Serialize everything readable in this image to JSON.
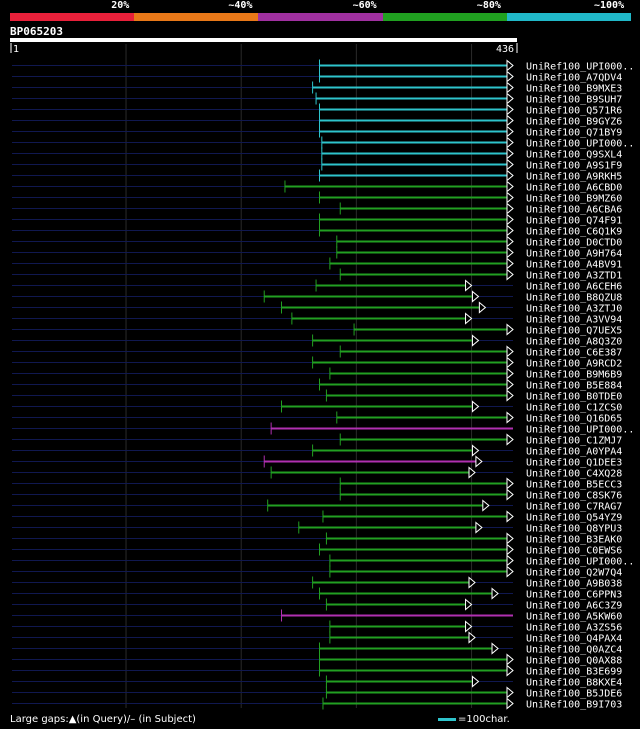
{
  "query": {
    "name": "BP065203",
    "start_label": "1",
    "end_label": "436",
    "length": 436
  },
  "identity_legend": [
    {
      "label": "20%",
      "color": "#e8203a"
    },
    {
      "label": "~40%",
      "color": "#e87818"
    },
    {
      "label": "~60%",
      "color": "#a030a0"
    },
    {
      "label": "~80%",
      "color": "#20a020"
    },
    {
      "label": "~100%",
      "color": "#20b8c8"
    }
  ],
  "footer": {
    "gaps_text": "Large gaps:▲(in Query)/– (in Subject)",
    "scale_text": "=100char."
  },
  "chart_data": {
    "type": "alignment",
    "x_range": [
      1,
      436
    ],
    "hits": [
      {
        "name": "UniRef100_UPI000..",
        "start": 268,
        "end": 436,
        "color": "cyan",
        "arrow": true
      },
      {
        "name": "UniRef100_A7QDV4",
        "start": 268,
        "end": 436,
        "color": "cyan",
        "arrow": true
      },
      {
        "name": "UniRef100_B9MXE3",
        "start": 262,
        "end": 436,
        "color": "cyan",
        "arrow": true
      },
      {
        "name": "UniRef100_B9SUH7",
        "start": 265,
        "end": 436,
        "color": "cyan",
        "arrow": true
      },
      {
        "name": "UniRef100_Q571R6",
        "start": 268,
        "end": 436,
        "color": "cyan",
        "arrow": true
      },
      {
        "name": "UniRef100_B9GYZ6",
        "start": 268,
        "end": 436,
        "color": "cyan",
        "arrow": true
      },
      {
        "name": "UniRef100_Q71BY9",
        "start": 268,
        "end": 436,
        "color": "cyan",
        "arrow": true
      },
      {
        "name": "UniRef100_UPI000..",
        "start": 270,
        "end": 436,
        "color": "cyan",
        "arrow": true
      },
      {
        "name": "UniRef100_Q9SXL4",
        "start": 270,
        "end": 436,
        "color": "cyan",
        "arrow": true
      },
      {
        "name": "UniRef100_A9S1F9",
        "start": 270,
        "end": 436,
        "color": "cyan",
        "arrow": true
      },
      {
        "name": "UniRef100_A9RKH5",
        "start": 268,
        "end": 436,
        "color": "cyan",
        "arrow": true
      },
      {
        "name": "UniRef100_A6CBD0",
        "start": 238,
        "end": 436,
        "color": "green",
        "arrow": true
      },
      {
        "name": "UniRef100_B9MZ60",
        "start": 268,
        "end": 436,
        "color": "green",
        "arrow": true
      },
      {
        "name": "UniRef100_A6CBA6",
        "start": 286,
        "end": 436,
        "color": "green",
        "arrow": true
      },
      {
        "name": "UniRef100_Q74F91",
        "start": 268,
        "end": 436,
        "color": "green",
        "arrow": true
      },
      {
        "name": "UniRef100_C6Q1K9",
        "start": 268,
        "end": 436,
        "color": "green",
        "arrow": true
      },
      {
        "name": "UniRef100_D0CTD0",
        "start": 283,
        "end": 436,
        "color": "green",
        "arrow": true
      },
      {
        "name": "UniRef100_A9H764",
        "start": 283,
        "end": 436,
        "color": "green",
        "arrow": true
      },
      {
        "name": "UniRef100_A4BV91",
        "start": 277,
        "end": 436,
        "color": "green",
        "arrow": true
      },
      {
        "name": "UniRef100_A3ZTD1",
        "start": 286,
        "end": 436,
        "color": "green",
        "arrow": true
      },
      {
        "name": "UniRef100_A6CEH6",
        "start": 265,
        "end": 400,
        "color": "green",
        "arrow": true
      },
      {
        "name": "UniRef100_B8QZU8",
        "start": 220,
        "end": 406,
        "color": "green",
        "arrow": true
      },
      {
        "name": "UniRef100_A3ZTJ0",
        "start": 235,
        "end": 412,
        "color": "green",
        "arrow": true
      },
      {
        "name": "UniRef100_A3VV94",
        "start": 244,
        "end": 400,
        "color": "green",
        "arrow": true
      },
      {
        "name": "UniRef100_Q7UEX5",
        "start": 298,
        "end": 436,
        "color": "green",
        "arrow": true
      },
      {
        "name": "UniRef100_A8Q3Z0",
        "start": 262,
        "end": 406,
        "color": "green",
        "arrow": true
      },
      {
        "name": "UniRef100_C6E387",
        "start": 286,
        "end": 436,
        "color": "green",
        "arrow": true
      },
      {
        "name": "UniRef100_A9RCD2",
        "start": 262,
        "end": 436,
        "color": "green",
        "arrow": true
      },
      {
        "name": "UniRef100_B9M6B9",
        "start": 277,
        "end": 436,
        "color": "green",
        "arrow": true
      },
      {
        "name": "UniRef100_B5E884",
        "start": 268,
        "end": 436,
        "color": "green",
        "arrow": true
      },
      {
        "name": "UniRef100_B0TDE0",
        "start": 274,
        "end": 436,
        "color": "green",
        "arrow": true
      },
      {
        "name": "UniRef100_C1ZCS0",
        "start": 235,
        "end": 406,
        "color": "green",
        "arrow": true
      },
      {
        "name": "UniRef100_Q16D65",
        "start": 283,
        "end": 436,
        "color": "green",
        "arrow": true
      },
      {
        "name": "UniRef100_UPI000..",
        "start": 226,
        "end": 436,
        "color": "magenta",
        "arrow": false
      },
      {
        "name": "UniRef100_C1ZMJ7",
        "start": 286,
        "end": 436,
        "color": "green",
        "arrow": true
      },
      {
        "name": "UniRef100_A0YPA4",
        "start": 262,
        "end": 406,
        "color": "green",
        "arrow": true
      },
      {
        "name": "UniRef100_Q1DEE3",
        "start": 220,
        "end": 409,
        "color": "magenta",
        "arrow": true
      },
      {
        "name": "UniRef100_C4XQ28",
        "start": 226,
        "end": 403,
        "color": "green",
        "arrow": true
      },
      {
        "name": "UniRef100_B5ECC3",
        "start": 286,
        "end": 436,
        "color": "green",
        "arrow": true
      },
      {
        "name": "UniRef100_C8SK76",
        "start": 286,
        "end": 436,
        "color": "green",
        "arrow": true
      },
      {
        "name": "UniRef100_C7RAG7",
        "start": 223,
        "end": 415,
        "color": "green",
        "arrow": true
      },
      {
        "name": "UniRef100_Q54YZ9",
        "start": 271,
        "end": 436,
        "color": "green",
        "arrow": true
      },
      {
        "name": "UniRef100_Q8YPU3",
        "start": 250,
        "end": 409,
        "color": "green",
        "arrow": true
      },
      {
        "name": "UniRef100_B3EAK0",
        "start": 274,
        "end": 436,
        "color": "green",
        "arrow": true
      },
      {
        "name": "UniRef100_C0EWS6",
        "start": 268,
        "end": 436,
        "color": "green",
        "arrow": true
      },
      {
        "name": "UniRef100_UPI000..",
        "start": 277,
        "end": 436,
        "color": "green",
        "arrow": true
      },
      {
        "name": "UniRef100_Q2W7Q4",
        "start": 277,
        "end": 436,
        "color": "green",
        "arrow": true
      },
      {
        "name": "UniRef100_A9B038",
        "start": 262,
        "end": 403,
        "color": "green",
        "arrow": true
      },
      {
        "name": "UniRef100_C6PPN3",
        "start": 268,
        "end": 423,
        "color": "green",
        "arrow": true
      },
      {
        "name": "UniRef100_A6C3Z9",
        "start": 274,
        "end": 400,
        "color": "green",
        "arrow": true
      },
      {
        "name": "UniRef100_A5KW60",
        "start": 235,
        "end": 436,
        "color": "magenta",
        "arrow": false
      },
      {
        "name": "UniRef100_A3ZS56",
        "start": 277,
        "end": 400,
        "color": "green",
        "arrow": true
      },
      {
        "name": "UniRef100_Q4PAX4",
        "start": 277,
        "end": 403,
        "color": "green",
        "arrow": true
      },
      {
        "name": "UniRef100_Q0AZC4",
        "start": 268,
        "end": 423,
        "color": "green",
        "arrow": true
      },
      {
        "name": "UniRef100_Q0AX88",
        "start": 268,
        "end": 436,
        "color": "green",
        "arrow": true
      },
      {
        "name": "UniRef100_B3E699",
        "start": 268,
        "end": 436,
        "color": "green",
        "arrow": true
      },
      {
        "name": "UniRef100_B8KXE4",
        "start": 274,
        "end": 406,
        "color": "green",
        "arrow": true
      },
      {
        "name": "UniRef100_B5JDE6",
        "start": 274,
        "end": 436,
        "color": "green",
        "arrow": true
      },
      {
        "name": "UniRef100_B9I703",
        "start": 271,
        "end": 436,
        "color": "green",
        "arrow": true
      }
    ]
  }
}
